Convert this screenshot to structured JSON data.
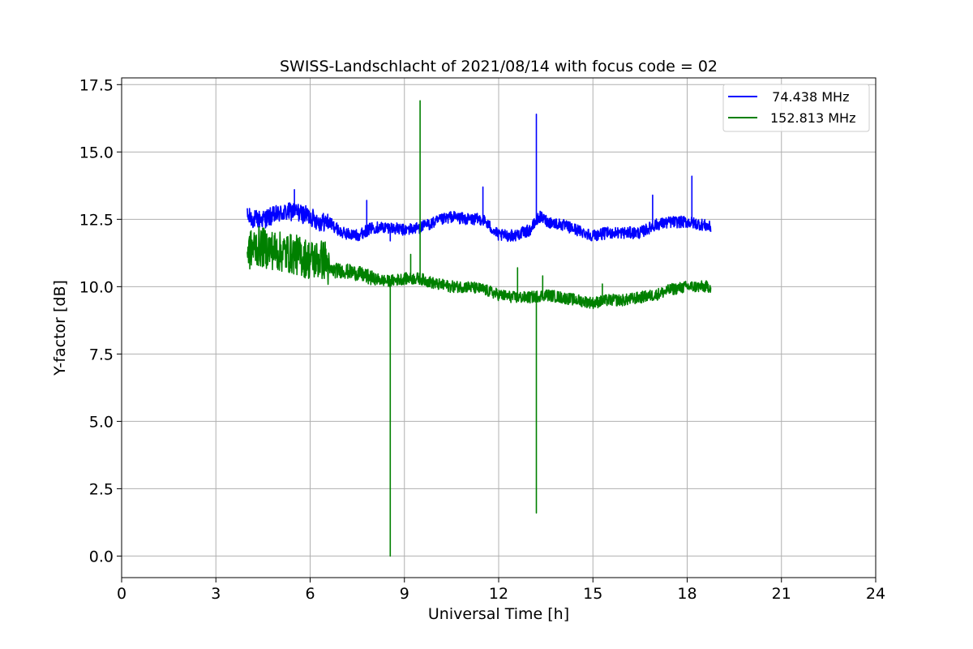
{
  "chart_data": {
    "type": "line",
    "title": "SWISS-Landschlacht of 2021/08/14 with focus code = 02",
    "xlabel": "Universal Time [h]",
    "ylabel": "Y-factor [dB]",
    "xlim": [
      0,
      24
    ],
    "ylim": [
      -0.8,
      17.75
    ],
    "xticks": [
      0,
      3,
      6,
      9,
      12,
      15,
      18,
      21,
      24
    ],
    "xtick_labels": [
      "0",
      "3",
      "6",
      "9",
      "12",
      "15",
      "18",
      "21",
      "24"
    ],
    "yticks": [
      0.0,
      2.5,
      5.0,
      7.5,
      10.0,
      12.5,
      15.0,
      17.5
    ],
    "ytick_labels": [
      "0.0",
      "2.5",
      "5.0",
      "7.5",
      "10.0",
      "12.5",
      "15.0",
      "17.5"
    ],
    "grid": true,
    "legend_position": "top-right",
    "series": [
      {
        "name": "  74.438 MHz",
        "color": "#0000ff",
        "x": [
          4.0,
          4.2,
          4.5,
          5.0,
          5.5,
          6.0,
          6.3,
          6.6,
          7.0,
          7.5,
          8.0,
          8.5,
          9.0,
          9.5,
          10.0,
          10.5,
          11.0,
          11.5,
          12.0,
          12.5,
          13.0,
          13.3,
          13.6,
          14.0,
          14.5,
          15.0,
          15.5,
          16.0,
          16.5,
          17.0,
          17.5,
          18.0,
          18.5,
          18.75
        ],
        "y": [
          12.6,
          12.5,
          12.5,
          12.7,
          12.8,
          12.6,
          12.4,
          12.4,
          12.0,
          11.9,
          12.2,
          12.2,
          12.1,
          12.2,
          12.4,
          12.6,
          12.5,
          12.5,
          11.9,
          11.9,
          12.1,
          12.6,
          12.4,
          12.3,
          12.1,
          11.9,
          12.0,
          12.0,
          12.0,
          12.3,
          12.4,
          12.4,
          12.3,
          12.2
        ],
        "spikes": [
          {
            "x": 5.5,
            "y": 13.6
          },
          {
            "x": 7.8,
            "y": 13.2
          },
          {
            "x": 8.55,
            "y": 11.7
          },
          {
            "x": 11.5,
            "y": 13.7
          },
          {
            "x": 13.2,
            "y": 16.4
          },
          {
            "x": 16.9,
            "y": 13.4
          },
          {
            "x": 18.15,
            "y": 14.1
          }
        ]
      },
      {
        "name": "152.813 MHz",
        "color": "#008000",
        "x": [
          4.0,
          4.3,
          4.7,
          5.0,
          5.5,
          6.0,
          6.5,
          6.6,
          7.0,
          7.5,
          8.0,
          8.5,
          9.0,
          9.5,
          10.0,
          10.5,
          11.0,
          11.5,
          12.0,
          12.5,
          13.0,
          13.5,
          14.0,
          14.5,
          15.0,
          15.5,
          16.0,
          16.5,
          17.0,
          17.5,
          18.0,
          18.5,
          18.75
        ],
        "y": [
          11.3,
          11.5,
          11.4,
          11.3,
          11.2,
          11.0,
          11.0,
          10.6,
          10.6,
          10.5,
          10.3,
          10.2,
          10.3,
          10.3,
          10.1,
          10.0,
          10.0,
          9.9,
          9.7,
          9.6,
          9.6,
          9.7,
          9.6,
          9.5,
          9.4,
          9.5,
          9.5,
          9.6,
          9.7,
          9.9,
          10.0,
          10.0,
          10.0
        ],
        "spikes": [
          {
            "x": 8.55,
            "y": 0.0
          },
          {
            "x": 9.2,
            "y": 11.2
          },
          {
            "x": 9.5,
            "y": 16.9
          },
          {
            "x": 12.6,
            "y": 10.7
          },
          {
            "x": 13.2,
            "y": 1.6
          },
          {
            "x": 13.4,
            "y": 10.4
          },
          {
            "x": 15.3,
            "y": 10.1
          }
        ]
      }
    ]
  }
}
